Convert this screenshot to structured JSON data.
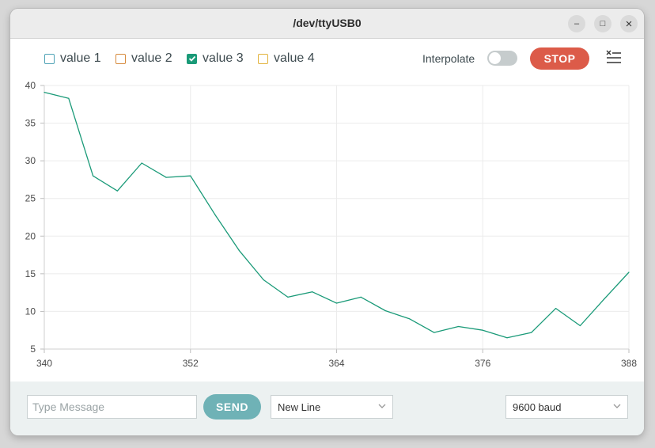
{
  "window": {
    "title": "/dev/ttyUSB0",
    "controls": {
      "minimize": "–",
      "maximize": "□",
      "close": "×"
    }
  },
  "toolbar": {
    "legend": [
      {
        "label": "value 1",
        "checked": false,
        "color": "#4fa3b6"
      },
      {
        "label": "value 2",
        "checked": false,
        "color": "#d68a3c"
      },
      {
        "label": "value 3",
        "checked": true,
        "color": "#1a9a78"
      },
      {
        "label": "value 4",
        "checked": false,
        "color": "#e2b33c"
      }
    ],
    "interpolate_label": "Interpolate",
    "interpolate_on": false,
    "stop_label": "STOP",
    "clear_icon": "clear-list-icon"
  },
  "chart_data": {
    "type": "line",
    "xlim": [
      340,
      388
    ],
    "ylim": [
      5,
      40
    ],
    "x_ticks": [
      "340",
      "352",
      "364",
      "376",
      "388"
    ],
    "y_ticks": [
      "40",
      "35",
      "30",
      "25",
      "20",
      "15",
      "10",
      "5"
    ],
    "grid": true,
    "series": [
      {
        "name": "value 3",
        "color": "#1a9a78",
        "x": [
          340,
          342,
          344,
          346,
          348,
          350,
          352,
          354,
          356,
          358,
          360,
          362,
          364,
          366,
          368,
          370,
          372,
          374,
          376,
          378,
          380,
          382,
          384,
          386,
          388
        ],
        "y": [
          39.1,
          38.3,
          28,
          26,
          29.7,
          27.8,
          28,
          22.9,
          18.1,
          14.2,
          11.9,
          12.6,
          11.1,
          11.9,
          10.1,
          9.0,
          7.2,
          8.0,
          7.5,
          6.5,
          7.2,
          10.4,
          8.1,
          11.7,
          15.2
        ]
      }
    ]
  },
  "footer": {
    "message_placeholder": "Type Message",
    "send_label": "SEND",
    "line_ending": "New Line",
    "baud_rate": "9600 baud"
  }
}
